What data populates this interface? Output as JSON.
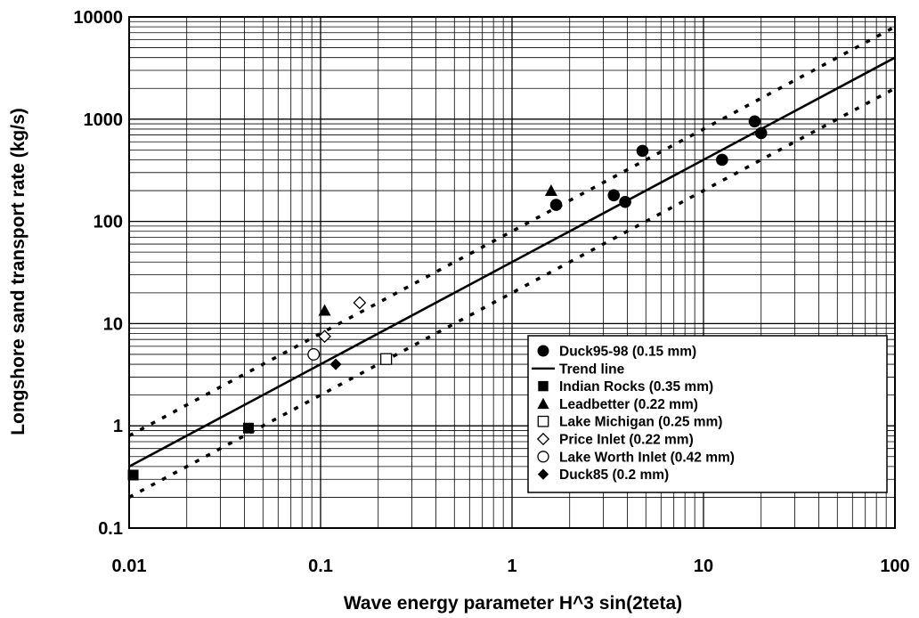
{
  "chart_data": {
    "type": "scatter",
    "x_scale": "log",
    "y_scale": "log",
    "xlim": [
      0.01,
      100
    ],
    "ylim": [
      0.1,
      10000
    ],
    "grid": true,
    "xlabel": "Wave energy parameter H^3 sin(2teta)",
    "ylabel": "Longshore sand transport rate (kg/s)",
    "x_ticks": [
      "0.01",
      "0.1",
      "1",
      "10",
      "100"
    ],
    "y_ticks": [
      "0.1",
      "1",
      "10",
      "100",
      "1000",
      "10000"
    ],
    "legend_position": "lower-right",
    "series": [
      {
        "name": "Duck95-98 (0.15 mm)",
        "marker": "filled-circle",
        "points": [
          [
            1.7,
            145
          ],
          [
            3.4,
            180
          ],
          [
            3.9,
            155
          ],
          [
            4.8,
            490
          ],
          [
            12.5,
            400
          ],
          [
            18.5,
            950
          ],
          [
            20,
            730
          ]
        ]
      },
      {
        "name": "Trend line",
        "style": "solid-line",
        "points": [
          [
            0.01,
            0.4
          ],
          [
            100,
            4000
          ]
        ]
      },
      {
        "name": "Indian Rocks (0.35 mm)",
        "marker": "filled-square",
        "points": [
          [
            0.0105,
            0.33
          ],
          [
            0.042,
            0.95
          ]
        ]
      },
      {
        "name": "Leadbetter (0.22 mm)",
        "marker": "filled-triangle",
        "points": [
          [
            0.105,
            13.5
          ],
          [
            1.6,
            200
          ]
        ]
      },
      {
        "name": "Lake Michigan (0.25 mm)",
        "marker": "open-square",
        "points": [
          [
            0.22,
            4.5
          ]
        ]
      },
      {
        "name": "Price Inlet (0.22 mm)",
        "marker": "open-diamond",
        "points": [
          [
            0.105,
            7.5
          ],
          [
            0.16,
            16
          ]
        ]
      },
      {
        "name": "Lake Worth Inlet (0.42 mm)",
        "marker": "open-circle",
        "points": [
          [
            0.092,
            5
          ]
        ]
      },
      {
        "name": "Duck85 (0.2 mm)",
        "marker": "filled-diamond",
        "points": [
          [
            0.12,
            4
          ]
        ]
      }
    ],
    "bounds": [
      {
        "style": "dotted-line",
        "points": [
          [
            0.01,
            0.8
          ],
          [
            100,
            8000
          ]
        ]
      },
      {
        "style": "dotted-line",
        "points": [
          [
            0.01,
            0.2
          ],
          [
            100,
            2000
          ]
        ]
      }
    ]
  }
}
